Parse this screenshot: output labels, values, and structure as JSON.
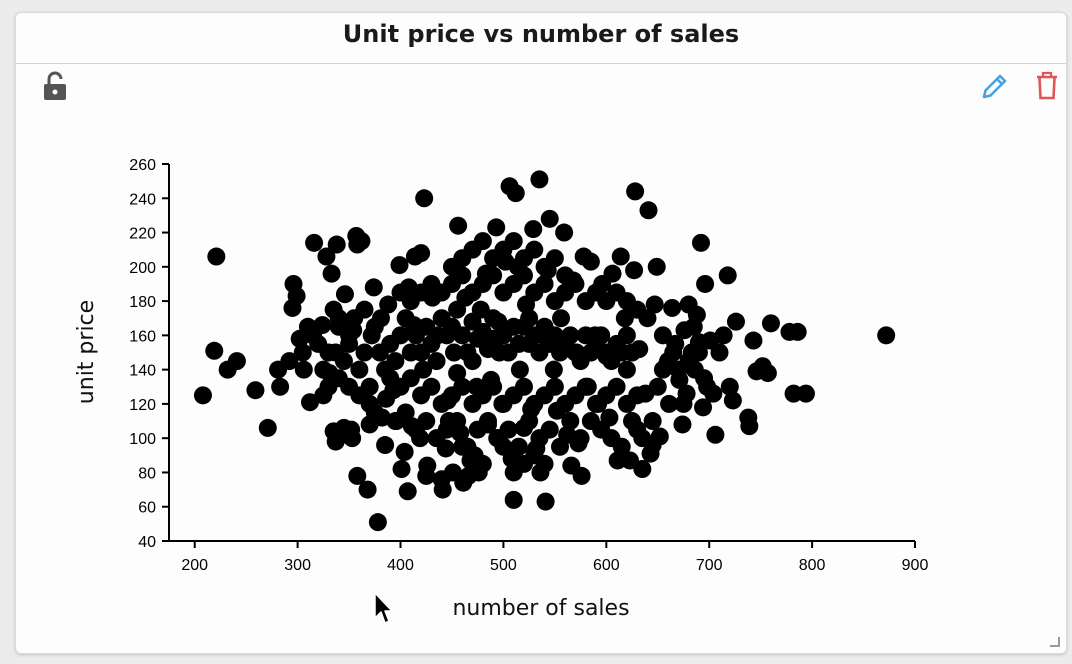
{
  "panel": {
    "title": "Unit price vs number of sales"
  },
  "icons": {
    "lock": "lock-open-icon",
    "edit": "pencil-icon",
    "delete": "trash-icon",
    "resize": "resize-handle-icon",
    "cursor": "mouse-pointer-icon"
  },
  "colors": {
    "edit": "#4aa3df",
    "delete": "#e05555",
    "lock": "#555555",
    "points": "#000000"
  },
  "chart_data": {
    "type": "scatter",
    "title": "Unit price vs number of sales",
    "xlabel": "number of sales",
    "ylabel": "unit price",
    "xlim": [
      175,
      900
    ],
    "ylim": [
      40,
      260
    ],
    "xticks": [
      200,
      300,
      400,
      500,
      600,
      700,
      800,
      900
    ],
    "yticks": [
      40,
      60,
      80,
      100,
      120,
      140,
      160,
      180,
      200,
      220,
      240,
      260
    ],
    "grid": false,
    "legend": "none",
    "points": [
      [
        208,
        125
      ],
      [
        221,
        206
      ],
      [
        219,
        151
      ],
      [
        232,
        140
      ],
      [
        241,
        145
      ],
      [
        259,
        128
      ],
      [
        271,
        106
      ],
      [
        281,
        140
      ],
      [
        283,
        130
      ],
      [
        292,
        145
      ],
      [
        295,
        176
      ],
      [
        296,
        190
      ],
      [
        299,
        183
      ],
      [
        302,
        158
      ],
      [
        306,
        140
      ],
      [
        312,
        121
      ],
      [
        316,
        214
      ],
      [
        324,
        166
      ],
      [
        328,
        206
      ],
      [
        331,
        138
      ],
      [
        337,
        150
      ],
      [
        335,
        104
      ],
      [
        337,
        98
      ],
      [
        333,
        196
      ],
      [
        338,
        213
      ],
      [
        345,
        106
      ],
      [
        352,
        105
      ],
      [
        353,
        100
      ],
      [
        346,
        184
      ],
      [
        350,
        160
      ],
      [
        354,
        163
      ],
      [
        357,
        218
      ],
      [
        358,
        213
      ],
      [
        362,
        215
      ],
      [
        358,
        78
      ],
      [
        368,
        70
      ],
      [
        378,
        51
      ],
      [
        370,
        108
      ],
      [
        372,
        160
      ],
      [
        374,
        188
      ],
      [
        381,
        170
      ],
      [
        386,
        123
      ],
      [
        385,
        96
      ],
      [
        382,
        112
      ],
      [
        388,
        178
      ],
      [
        393,
        128
      ],
      [
        396,
        110
      ],
      [
        399,
        201
      ],
      [
        401,
        82
      ],
      [
        404,
        92
      ],
      [
        407,
        69
      ],
      [
        408,
        188
      ],
      [
        411,
        107
      ],
      [
        413,
        166
      ],
      [
        414,
        206
      ],
      [
        419,
        100
      ],
      [
        420,
        208
      ],
      [
        423,
        240
      ],
      [
        422,
        140
      ],
      [
        425,
        78
      ],
      [
        426,
        84
      ],
      [
        431,
        182
      ],
      [
        436,
        160
      ],
      [
        440,
        76
      ],
      [
        441,
        70
      ],
      [
        444,
        94
      ],
      [
        446,
        122
      ],
      [
        447,
        110
      ],
      [
        451,
        80
      ],
      [
        452,
        150
      ],
      [
        455,
        138
      ],
      [
        456,
        224
      ],
      [
        458,
        103
      ],
      [
        461,
        74
      ],
      [
        463,
        182
      ],
      [
        466,
        78
      ],
      [
        468,
        87
      ],
      [
        470,
        145
      ],
      [
        472,
        90
      ],
      [
        474,
        130
      ],
      [
        476,
        80
      ],
      [
        478,
        175
      ],
      [
        481,
        160
      ],
      [
        483,
        196
      ],
      [
        485,
        108
      ],
      [
        488,
        134
      ],
      [
        490,
        170
      ],
      [
        493,
        223
      ],
      [
        494,
        100
      ],
      [
        496,
        150
      ],
      [
        499,
        120
      ],
      [
        502,
        203
      ],
      [
        506,
        247
      ],
      [
        508,
        88
      ],
      [
        510,
        64
      ],
      [
        512,
        243
      ],
      [
        514,
        200
      ],
      [
        516,
        140
      ],
      [
        520,
        106
      ],
      [
        522,
        178
      ],
      [
        525,
        155
      ],
      [
        527,
        117
      ],
      [
        529,
        222
      ],
      [
        532,
        94
      ],
      [
        535,
        251
      ],
      [
        536,
        80
      ],
      [
        539,
        160
      ],
      [
        541,
        63
      ],
      [
        543,
        198
      ],
      [
        545,
        228
      ],
      [
        549,
        140
      ],
      [
        552,
        116
      ],
      [
        556,
        170
      ],
      [
        559,
        220
      ],
      [
        562,
        102
      ],
      [
        566,
        84
      ],
      [
        568,
        192
      ],
      [
        571,
        150
      ],
      [
        573,
        97
      ],
      [
        576,
        78
      ],
      [
        578,
        206
      ],
      [
        582,
        130
      ],
      [
        585,
        203
      ],
      [
        589,
        160
      ],
      [
        592,
        120
      ],
      [
        596,
        190
      ],
      [
        600,
        148
      ],
      [
        603,
        112
      ],
      [
        606,
        196
      ],
      [
        611,
        87
      ],
      [
        614,
        206
      ],
      [
        618,
        170
      ],
      [
        620,
        140
      ],
      [
        623,
        87
      ],
      [
        627,
        198
      ],
      [
        628,
        244
      ],
      [
        630,
        105
      ],
      [
        632,
        152
      ],
      [
        635,
        82
      ],
      [
        638,
        126
      ],
      [
        641,
        233
      ],
      [
        643,
        91
      ],
      [
        645,
        96
      ],
      [
        647,
        178
      ],
      [
        649,
        200
      ],
      [
        652,
        101
      ],
      [
        655,
        160
      ],
      [
        658,
        142
      ],
      [
        661,
        120
      ],
      [
        664,
        176
      ],
      [
        667,
        155
      ],
      [
        671,
        134
      ],
      [
        674,
        108
      ],
      [
        676,
        163
      ],
      [
        678,
        126
      ],
      [
        680,
        178
      ],
      [
        683,
        150
      ],
      [
        686,
        140
      ],
      [
        688,
        172
      ],
      [
        690,
        156
      ],
      [
        692,
        214
      ],
      [
        694,
        118
      ],
      [
        696,
        190
      ],
      [
        698,
        130
      ],
      [
        701,
        157
      ],
      [
        704,
        126
      ],
      [
        706,
        102
      ],
      [
        710,
        150
      ],
      [
        714,
        160
      ],
      [
        718,
        195
      ],
      [
        720,
        130
      ],
      [
        723,
        122
      ],
      [
        726,
        168
      ],
      [
        738,
        112
      ],
      [
        739,
        107
      ],
      [
        743,
        157
      ],
      [
        746,
        139
      ],
      [
        752,
        142
      ],
      [
        757,
        138
      ],
      [
        760,
        167
      ],
      [
        778,
        162
      ],
      [
        782,
        126
      ],
      [
        786,
        162
      ],
      [
        794,
        126
      ],
      [
        872,
        160
      ],
      [
        380,
        150
      ],
      [
        385,
        140
      ],
      [
        390,
        155
      ],
      [
        395,
        145
      ],
      [
        400,
        160
      ],
      [
        405,
        170
      ],
      [
        410,
        150
      ],
      [
        415,
        160
      ],
      [
        420,
        150
      ],
      [
        425,
        165
      ],
      [
        430,
        155
      ],
      [
        435,
        145
      ],
      [
        440,
        170
      ],
      [
        445,
        160
      ],
      [
        450,
        165
      ],
      [
        455,
        175
      ],
      [
        460,
        160
      ],
      [
        465,
        150
      ],
      [
        470,
        168
      ],
      [
        475,
        158
      ],
      [
        480,
        162
      ],
      [
        485,
        152
      ],
      [
        490,
        158
      ],
      [
        495,
        168
      ],
      [
        500,
        160
      ],
      [
        505,
        150
      ],
      [
        510,
        165
      ],
      [
        515,
        155
      ],
      [
        520,
        165
      ],
      [
        525,
        170
      ],
      [
        530,
        160
      ],
      [
        535,
        150
      ],
      [
        540,
        165
      ],
      [
        545,
        155
      ],
      [
        550,
        160
      ],
      [
        555,
        150
      ],
      [
        560,
        155
      ],
      [
        565,
        160
      ],
      [
        570,
        150
      ],
      [
        575,
        145
      ],
      [
        580,
        160
      ],
      [
        585,
        150
      ],
      [
        590,
        155
      ],
      [
        595,
        160
      ],
      [
        600,
        150
      ],
      [
        605,
        145
      ],
      [
        610,
        155
      ],
      [
        615,
        150
      ],
      [
        620,
        160
      ],
      [
        625,
        150
      ],
      [
        390,
        135
      ],
      [
        400,
        130
      ],
      [
        410,
        135
      ],
      [
        420,
        125
      ],
      [
        430,
        130
      ],
      [
        440,
        120
      ],
      [
        450,
        125
      ],
      [
        460,
        130
      ],
      [
        470,
        120
      ],
      [
        480,
        125
      ],
      [
        490,
        130
      ],
      [
        500,
        120
      ],
      [
        510,
        125
      ],
      [
        520,
        130
      ],
      [
        530,
        120
      ],
      [
        540,
        125
      ],
      [
        550,
        130
      ],
      [
        560,
        120
      ],
      [
        570,
        125
      ],
      [
        580,
        130
      ],
      [
        590,
        120
      ],
      [
        600,
        125
      ],
      [
        610,
        130
      ],
      [
        620,
        120
      ],
      [
        630,
        125
      ],
      [
        400,
        185
      ],
      [
        410,
        180
      ],
      [
        420,
        185
      ],
      [
        430,
        190
      ],
      [
        440,
        185
      ],
      [
        450,
        190
      ],
      [
        460,
        195
      ],
      [
        470,
        185
      ],
      [
        480,
        190
      ],
      [
        490,
        195
      ],
      [
        500,
        185
      ],
      [
        510,
        190
      ],
      [
        520,
        195
      ],
      [
        530,
        185
      ],
      [
        540,
        190
      ],
      [
        550,
        180
      ],
      [
        560,
        185
      ],
      [
        570,
        190
      ],
      [
        580,
        180
      ],
      [
        590,
        185
      ],
      [
        600,
        180
      ],
      [
        610,
        185
      ],
      [
        620,
        180
      ],
      [
        630,
        175
      ],
      [
        640,
        170
      ],
      [
        360,
        140
      ],
      [
        365,
        150
      ],
      [
        370,
        130
      ],
      [
        350,
        155
      ],
      [
        345,
        145
      ],
      [
        340,
        165
      ],
      [
        330,
        150
      ],
      [
        325,
        140
      ],
      [
        320,
        155
      ],
      [
        315,
        160
      ],
      [
        310,
        165
      ],
      [
        305,
        150
      ],
      [
        360,
        125
      ],
      [
        370,
        120
      ],
      [
        375,
        115
      ],
      [
        350,
        130
      ],
      [
        340,
        135
      ],
      [
        330,
        130
      ],
      [
        325,
        125
      ],
      [
        355,
        170
      ],
      [
        365,
        175
      ],
      [
        375,
        165
      ],
      [
        340,
        170
      ],
      [
        335,
        175
      ],
      [
        650,
        130
      ],
      [
        655,
        140
      ],
      [
        660,
        145
      ],
      [
        665,
        150
      ],
      [
        670,
        140
      ],
      [
        675,
        120
      ],
      [
        680,
        145
      ],
      [
        685,
        165
      ],
      [
        690,
        150
      ],
      [
        695,
        135
      ],
      [
        645,
        110
      ],
      [
        635,
        100
      ],
      [
        625,
        110
      ],
      [
        615,
        95
      ],
      [
        605,
        100
      ],
      [
        595,
        105
      ],
      [
        585,
        110
      ],
      [
        575,
        100
      ],
      [
        565,
        110
      ],
      [
        555,
        95
      ],
      [
        545,
        105
      ],
      [
        535,
        100
      ],
      [
        525,
        110
      ],
      [
        515,
        95
      ],
      [
        505,
        105
      ],
      [
        495,
        100
      ],
      [
        485,
        110
      ],
      [
        475,
        105
      ],
      [
        465,
        95
      ],
      [
        455,
        110
      ],
      [
        445,
        105
      ],
      [
        435,
        100
      ],
      [
        425,
        110
      ],
      [
        415,
        105
      ],
      [
        405,
        115
      ],
      [
        395,
        110
      ],
      [
        470,
        210
      ],
      [
        480,
        215
      ],
      [
        490,
        205
      ],
      [
        500,
        210
      ],
      [
        510,
        215
      ],
      [
        520,
        205
      ],
      [
        530,
        210
      ],
      [
        460,
        205
      ],
      [
        450,
        200
      ],
      [
        540,
        200
      ],
      [
        550,
        205
      ],
      [
        560,
        195
      ],
      [
        470,
        90
      ],
      [
        480,
        85
      ],
      [
        520,
        85
      ],
      [
        530,
        90
      ],
      [
        540,
        85
      ],
      [
        500,
        95
      ],
      [
        510,
        80
      ],
      [
        460,
        95
      ]
    ]
  }
}
